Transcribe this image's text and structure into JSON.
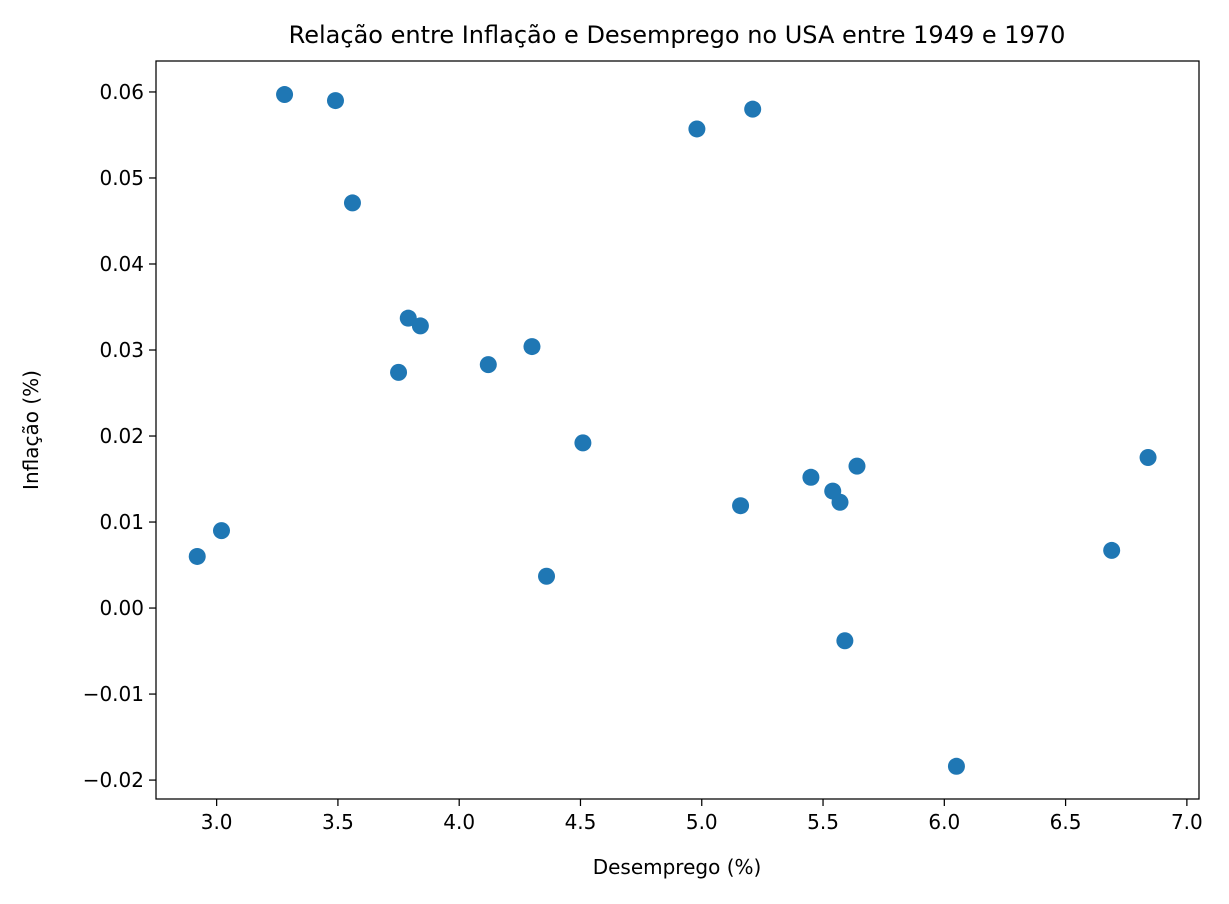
{
  "chart_data": {
    "type": "scatter",
    "title": "Relação entre Inflação e Desemprego no USA entre 1949 e 1970",
    "xlabel": "Desemprego (%)",
    "ylabel": "Inflação (%)",
    "xlim": [
      2.75,
      7.05
    ],
    "ylim": [
      -0.0222,
      0.0636
    ],
    "xticks": [
      3.0,
      3.5,
      4.0,
      4.5,
      5.0,
      5.5,
      6.0,
      6.5,
      7.0
    ],
    "xtick_labels": [
      "3.0",
      "3.5",
      "4.0",
      "4.5",
      "5.0",
      "5.5",
      "6.0",
      "6.5",
      "7.0"
    ],
    "yticks": [
      -0.02,
      -0.01,
      0.0,
      0.01,
      0.02,
      0.03,
      0.04,
      0.05,
      0.06
    ],
    "ytick_labels": [
      "−0.02",
      "−0.01",
      "0.00",
      "0.01",
      "0.02",
      "0.03",
      "0.04",
      "0.05",
      "0.06"
    ],
    "grid": false,
    "marker_color": "#1f77b4",
    "points": [
      {
        "x": 3.28,
        "y": 0.0597
      },
      {
        "x": 3.49,
        "y": 0.059
      },
      {
        "x": 3.56,
        "y": 0.0471
      },
      {
        "x": 3.79,
        "y": 0.0337
      },
      {
        "x": 3.84,
        "y": 0.0328
      },
      {
        "x": 3.75,
        "y": 0.0274
      },
      {
        "x": 4.12,
        "y": 0.0283
      },
      {
        "x": 4.3,
        "y": 0.0304
      },
      {
        "x": 4.51,
        "y": 0.0192
      },
      {
        "x": 2.92,
        "y": 0.006
      },
      {
        "x": 3.02,
        "y": 0.009
      },
      {
        "x": 4.36,
        "y": 0.0037
      },
      {
        "x": 4.98,
        "y": 0.0557
      },
      {
        "x": 5.21,
        "y": 0.058
      },
      {
        "x": 5.16,
        "y": 0.0119
      },
      {
        "x": 5.45,
        "y": 0.0152
      },
      {
        "x": 5.54,
        "y": 0.0136
      },
      {
        "x": 5.57,
        "y": 0.0123
      },
      {
        "x": 5.64,
        "y": 0.0165
      },
      {
        "x": 5.59,
        "y": -0.0038
      },
      {
        "x": 6.05,
        "y": -0.0184
      },
      {
        "x": 6.69,
        "y": 0.0067
      },
      {
        "x": 6.84,
        "y": 0.0175
      }
    ]
  }
}
